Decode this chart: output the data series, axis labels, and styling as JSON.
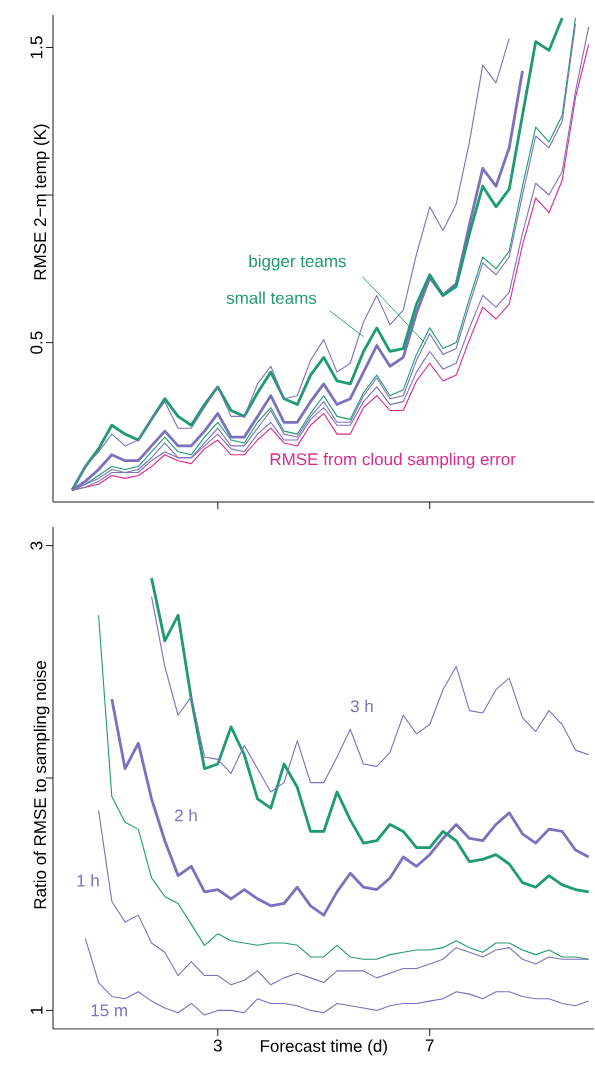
{
  "chart_data": [
    {
      "type": "line",
      "ylabel": "RMSE 2−m temp (K)",
      "tick_labels": "y",
      "x": [
        0.25,
        0.5,
        0.75,
        1,
        1.25,
        1.5,
        1.75,
        2,
        2.25,
        2.5,
        2.75,
        3,
        3.25,
        3.5,
        3.75,
        4,
        4.25,
        4.5,
        4.75,
        5,
        5.25,
        5.5,
        5.75,
        6,
        6.25,
        6.5,
        6.75,
        7,
        7.25,
        7.5,
        7.75,
        8,
        8.25,
        8.5,
        8.75,
        9,
        9.25,
        9.5,
        9.75,
        10
      ],
      "xlim": [
        -0.11,
        10.1
      ],
      "xticks": [
        3,
        7
      ],
      "ylim": [
        -0.04,
        1.61
      ],
      "yticks": [
        0.5,
        {
          "value": 1,
          "label": null
        },
        1.5
      ],
      "series": [
        {
          "name": "RMSE from cloud sampling error",
          "color": "#e2278b",
          "values": [
            0,
            0.01,
            0.02,
            0.05,
            0.04,
            0.05,
            0.08,
            0.12,
            0.1,
            0.09,
            0.14,
            0.17,
            0.12,
            0.12,
            0.17,
            0.21,
            0.16,
            0.15,
            0.22,
            0.26,
            0.19,
            0.19,
            0.28,
            0.32,
            0.27,
            0.27,
            0.37,
            0.43,
            0.37,
            0.39,
            0.51,
            0.62,
            0.58,
            0.63,
            0.83,
            0.99,
            0.94,
            1.05,
            1.33,
            1.51
          ]
        },
        {
          "color": "#7d70bd",
          "values": [
            0,
            0.01,
            0.03,
            0.06,
            0.06,
            0.06,
            0.1,
            0.13,
            0.11,
            0.11,
            0.15,
            0.19,
            0.14,
            0.13,
            0.19,
            0.23,
            0.17,
            0.17,
            0.24,
            0.28,
            0.22,
            0.22,
            0.3,
            0.35,
            0.29,
            0.3,
            0.4,
            0.47,
            0.41,
            0.43,
            0.55,
            0.66,
            0.62,
            0.67,
            0.87,
            1.04,
            1.0,
            1.08,
            1.35,
            1.57
          ]
        },
        {
          "color": "#1e9b72",
          "values": [
            0,
            0.02,
            0.05,
            0.08,
            0.07,
            0.08,
            0.13,
            0.18,
            0.13,
            0.12,
            0.18,
            0.23,
            0.17,
            0.16,
            0.23,
            0.28,
            0.2,
            0.19,
            0.26,
            0.32,
            0.25,
            0.24,
            0.33,
            0.39,
            0.32,
            0.34,
            0.46,
            0.55,
            0.48,
            0.5,
            0.65,
            0.79,
            0.75,
            0.81,
            1.03,
            1.23,
            1.18,
            1.27,
            1.6,
            null
          ]
        },
        {
          "color": "#7d70bd",
          "values": [
            0,
            0.02,
            0.04,
            0.07,
            0.06,
            0.07,
            0.11,
            0.16,
            0.11,
            0.11,
            0.16,
            0.21,
            0.15,
            0.15,
            0.21,
            0.27,
            0.19,
            0.18,
            0.25,
            0.3,
            0.23,
            0.23,
            0.32,
            0.38,
            0.31,
            0.32,
            0.44,
            0.53,
            0.46,
            0.48,
            0.63,
            0.77,
            0.73,
            0.79,
            1.0,
            1.2,
            1.16,
            1.25,
            1.58,
            null
          ]
        },
        {
          "color": "#7d70bd",
          "values": [
            0,
            0.03,
            0.07,
            0.12,
            0.1,
            0.1,
            0.15,
            0.2,
            0.15,
            0.15,
            0.2,
            0.26,
            0.18,
            0.18,
            0.25,
            0.32,
            0.23,
            0.23,
            0.3,
            0.36,
            0.29,
            0.31,
            0.4,
            0.49,
            0.42,
            0.45,
            0.6,
            0.72,
            0.66,
            0.7,
            0.9,
            1.09,
            1.03,
            1.16,
            1.42,
            null,
            null,
            null,
            null,
            null
          ]
        },
        {
          "color": "#1e9b72",
          "values": [
            0,
            0.08,
            0.14,
            0.22,
            0.19,
            0.17,
            0.24,
            0.31,
            0.25,
            0.22,
            0.29,
            0.35,
            0.27,
            0.25,
            0.33,
            0.4,
            0.31,
            0.29,
            0.39,
            0.45,
            0.37,
            0.36,
            0.47,
            0.55,
            0.47,
            0.48,
            0.63,
            0.73,
            0.66,
            0.69,
            0.87,
            1.03,
            0.96,
            1.02,
            1.27,
            1.52,
            1.49,
            1.6,
            null,
            null
          ]
        },
        {
          "color": "#7d70bd",
          "values": [
            0,
            0.08,
            0.13,
            0.19,
            0.15,
            0.17,
            0.24,
            0.3,
            0.21,
            0.21,
            0.28,
            0.35,
            0.25,
            0.25,
            0.36,
            0.42,
            0.31,
            0.32,
            0.44,
            0.51,
            0.4,
            0.43,
            0.57,
            0.66,
            0.56,
            0.61,
            0.8,
            0.96,
            0.88,
            0.97,
            1.18,
            1.44,
            1.38,
            1.53,
            null,
            null,
            null,
            null,
            null,
            null
          ]
        }
      ],
      "annotations": [
        {
          "text": "bigger teams",
          "x": 6.9,
          "y": 0.5
        },
        {
          "text": "small teams",
          "x": 5.75,
          "y": 0.52
        }
      ]
    },
    {
      "type": "line",
      "ylabel": "Ratio of RMSE to sampling noise",
      "xlabel": "Forecast time (d)",
      "x": [
        0.5,
        0.75,
        1,
        1.25,
        1.5,
        1.75,
        2,
        2.25,
        2.5,
        2.75,
        3,
        3.25,
        3.5,
        3.75,
        4,
        4.25,
        4.5,
        4.75,
        5,
        5.25,
        5.5,
        5.75,
        6,
        6.25,
        6.5,
        6.75,
        7,
        7.25,
        7.5,
        7.75,
        8,
        8.25,
        8.5,
        8.75,
        9,
        9.25,
        9.5,
        9.75,
        10
      ],
      "xlim": [
        -0.11,
        10.1
      ],
      "xticks": [
        3,
        7
      ],
      "ylim": [
        0.92,
        3.08
      ],
      "yticks": [
        1,
        {
          "value": 2,
          "label": null
        },
        3
      ],
      "series": [
        {
          "name": "15 m",
          "color": "#7d70bd",
          "values": [
            1.31,
            1.12,
            1.06,
            1.05,
            1.08,
            1.04,
            1.01,
            0.99,
            1.03,
            0.98,
            1.0,
            1.0,
            0.99,
            1.05,
            1.03,
            1.03,
            1.02,
            1.0,
            0.99,
            1.03,
            1.02,
            1.01,
            1.0,
            1.02,
            1.03,
            1.03,
            1.04,
            1.05,
            1.08,
            1.07,
            1.05,
            1.08,
            1.08,
            1.06,
            1.05,
            1.05,
            1.03,
            1.02,
            1.04
          ]
        },
        {
          "name": "1 h",
          "color": "#7d70bd",
          "values": [
            null,
            1.86,
            1.47,
            1.38,
            1.41,
            1.29,
            1.25,
            1.15,
            1.21,
            1.15,
            1.15,
            1.11,
            1.13,
            1.17,
            1.11,
            1.14,
            1.16,
            1.14,
            1.12,
            1.17,
            1.17,
            1.17,
            1.14,
            1.16,
            1.18,
            1.18,
            1.2,
            1.22,
            1.27,
            1.25,
            1.23,
            1.26,
            1.27,
            1.22,
            1.2,
            1.23,
            1.22,
            1.22,
            1.22
          ]
        },
        {
          "color": "#1e9b72",
          "values": [
            null,
            2.7,
            1.92,
            1.81,
            1.78,
            1.57,
            1.49,
            1.46,
            1.37,
            1.28,
            1.33,
            1.3,
            1.29,
            1.28,
            1.29,
            1.29,
            1.28,
            1.23,
            1.23,
            1.28,
            1.23,
            1.22,
            1.22,
            1.24,
            1.25,
            1.26,
            1.26,
            1.27,
            1.3,
            1.27,
            1.25,
            1.29,
            1.29,
            1.26,
            1.24,
            1.26,
            1.23,
            1.23,
            1.22
          ]
        },
        {
          "name": "2 h",
          "color": "#7d70bd",
          "values": [
            null,
            null,
            2.34,
            2.04,
            2.15,
            1.91,
            1.73,
            1.58,
            1.62,
            1.51,
            1.52,
            1.48,
            1.52,
            1.48,
            1.45,
            1.46,
            1.53,
            1.45,
            1.41,
            1.51,
            1.59,
            1.53,
            1.52,
            1.57,
            1.66,
            1.62,
            1.67,
            1.74,
            1.8,
            1.74,
            1.73,
            1.8,
            1.85,
            1.76,
            1.72,
            1.78,
            1.77,
            1.69,
            1.66
          ]
        },
        {
          "color": "#1e9b72",
          "values": [
            null,
            null,
            null,
            null,
            null,
            2.86,
            2.59,
            2.7,
            2.34,
            2.04,
            2.06,
            2.22,
            2.1,
            1.91,
            1.87,
            2.06,
            1.96,
            1.77,
            1.77,
            1.94,
            1.82,
            1.72,
            1.73,
            1.8,
            1.77,
            1.7,
            1.7,
            1.77,
            1.73,
            1.64,
            1.65,
            1.67,
            1.63,
            1.55,
            1.53,
            1.58,
            1.54,
            1.52,
            1.51
          ]
        },
        {
          "name": "3 h",
          "color": "#7d70bd",
          "values": [
            null,
            null,
            null,
            null,
            null,
            2.78,
            2.48,
            2.27,
            2.35,
            2.09,
            2.08,
            2.02,
            2.14,
            2.04,
            1.94,
            1.98,
            2.16,
            1.98,
            1.98,
            2.09,
            2.21,
            2.06,
            2.05,
            2.11,
            2.27,
            2.19,
            2.23,
            2.38,
            2.48,
            2.29,
            2.28,
            2.38,
            2.43,
            2.26,
            2.2,
            2.29,
            2.23,
            2.12,
            2.1
          ]
        }
      ]
    }
  ]
}
